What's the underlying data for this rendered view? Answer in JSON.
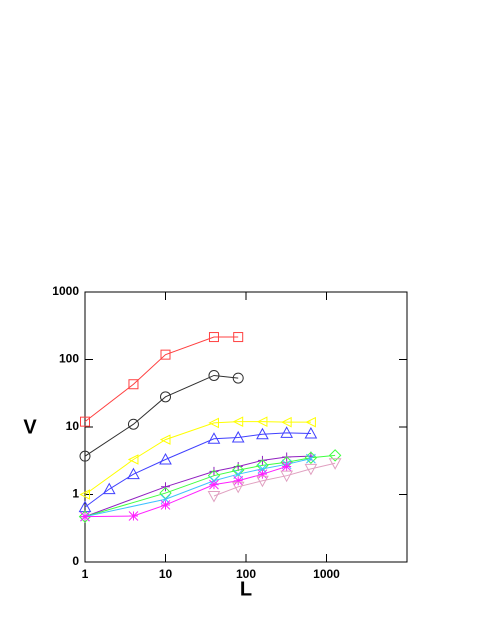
{
  "chart_data": {
    "type": "line",
    "x_label": "L",
    "y_label": "V",
    "log_x": true,
    "log_y": true,
    "xlim": [
      1,
      10000
    ],
    "ylim": [
      0.1,
      1000
    ],
    "xticks": [
      1,
      10,
      100,
      1000
    ],
    "yticks": [
      {
        "value": 0.1,
        "label": "0"
      },
      1,
      10,
      100,
      1000
    ],
    "series": [
      {
        "color": "#ff4040",
        "marker": "square",
        "x": [
          1,
          4,
          10,
          40,
          80
        ],
        "values": [
          12,
          43,
          118,
          215,
          215
        ]
      },
      {
        "color": "#303030",
        "marker": "circle",
        "x": [
          1,
          4,
          10,
          40,
          80
        ],
        "values": [
          3.7,
          11,
          28,
          58,
          53
        ]
      },
      {
        "color": "#ffff00",
        "marker": "left-triangle",
        "x": [
          1,
          4,
          10,
          40,
          80,
          160,
          320,
          640
        ],
        "values": [
          1.0,
          3.3,
          6.5,
          11.5,
          12,
          12,
          11.8,
          11.8
        ]
      },
      {
        "color": "#4040ff",
        "marker": "up-triangle",
        "x": [
          1,
          2,
          4,
          10,
          40,
          80,
          160,
          320,
          640
        ],
        "values": [
          0.65,
          1.2,
          2.0,
          3.3,
          6.7,
          7.0,
          7.8,
          8.2,
          8.0
        ]
      },
      {
        "color": "#9020c0",
        "marker": "plus",
        "x": [
          1,
          10,
          40,
          80,
          160,
          320,
          640
        ],
        "values": [
          0.47,
          1.3,
          2.2,
          2.6,
          3.2,
          3.6,
          3.7
        ]
      },
      {
        "color": "#40ff40",
        "marker": "diamond",
        "x": [
          1,
          10,
          40,
          80,
          160,
          320,
          640,
          1280
        ],
        "values": [
          0.47,
          1.05,
          1.9,
          2.3,
          2.7,
          3.0,
          3.5,
          3.8
        ]
      },
      {
        "color": "#40c0ff",
        "marker": "cross",
        "x": [
          1,
          10,
          40,
          80,
          160,
          320,
          640
        ],
        "values": [
          0.47,
          0.85,
          1.6,
          2.0,
          2.4,
          2.8,
          3.4
        ]
      },
      {
        "color": "#ff20ff",
        "marker": "star",
        "x": [
          1,
          4,
          10,
          40,
          80,
          160,
          320
        ],
        "values": [
          0.47,
          0.48,
          0.7,
          1.4,
          1.6,
          2.0,
          2.6
        ]
      },
      {
        "color": "#e0a0c0",
        "marker": "down-triangle",
        "x": [
          40,
          80,
          160,
          320,
          640,
          1280
        ],
        "values": [
          0.95,
          1.3,
          1.6,
          1.9,
          2.4,
          2.9
        ]
      }
    ]
  }
}
